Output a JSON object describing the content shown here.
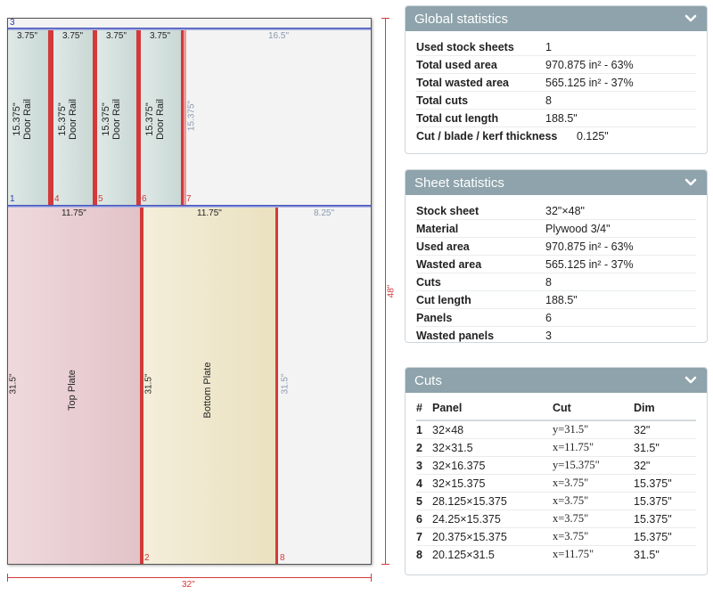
{
  "board": {
    "sheet_width": "32\"",
    "sheet_height": "48\"",
    "strip_number": "3",
    "top_waste_width": "16.5\"",
    "top_waste_height": "15.375\"",
    "bottom_waste_width": "8.25\"",
    "bottom_waste_height": "31.5\"",
    "door_rails": [
      {
        "width": "3.75\"",
        "height": "15.375\"",
        "name": "Door Rail",
        "cut": "1"
      },
      {
        "width": "3.75\"",
        "height": "15.375\"",
        "name": "Door Rail",
        "cut": "4"
      },
      {
        "width": "3.75\"",
        "height": "15.375\"",
        "name": "Door Rail",
        "cut": "5"
      },
      {
        "width": "3.75\"",
        "height": "15.375\"",
        "name": "Door Rail",
        "cut": "6"
      }
    ],
    "cut7": "7",
    "top_plate": {
      "width": "11.75\"",
      "height": "31.5\"",
      "name": "Top Plate"
    },
    "bottom_plate": {
      "width": "11.75\"",
      "height": "31.5\"",
      "name": "Bottom Plate",
      "cut": "2"
    },
    "cut8": "8"
  },
  "global_stats": {
    "title": "Global statistics",
    "rows": [
      {
        "label": "Used stock sheets",
        "value": "1"
      },
      {
        "label": "Total used area",
        "value": "970.875 in² - 63%"
      },
      {
        "label": "Total wasted area",
        "value": "565.125 in² - 37%"
      },
      {
        "label": "Total cuts",
        "value": "8"
      },
      {
        "label": "Total cut length",
        "value": "188.5\""
      },
      {
        "label": "Cut / blade / kerf thickness",
        "value": "0.125\""
      }
    ]
  },
  "sheet_stats": {
    "title": "Sheet statistics",
    "rows": [
      {
        "label": "Stock sheet",
        "value": "32\"×48\""
      },
      {
        "label": "Material",
        "value": "Plywood 3/4\""
      },
      {
        "label": "Used area",
        "value": "970.875 in² - 63%"
      },
      {
        "label": "Wasted area",
        "value": "565.125 in² - 37%"
      },
      {
        "label": "Cuts",
        "value": "8"
      },
      {
        "label": "Cut length",
        "value": "188.5\""
      },
      {
        "label": "Panels",
        "value": "6"
      },
      {
        "label": "Wasted panels",
        "value": "3"
      }
    ]
  },
  "cuts": {
    "title": "Cuts",
    "headers": {
      "num": "#",
      "panel": "Panel",
      "cut": "Cut",
      "dim": "Dim"
    },
    "rows": [
      {
        "num": "1",
        "panel": "32×48",
        "cut": "y=31.5\"",
        "dim": "32\""
      },
      {
        "num": "2",
        "panel": "32×31.5",
        "cut": "x=11.75\"",
        "dim": "31.5\""
      },
      {
        "num": "3",
        "panel": "32×16.375",
        "cut": "y=15.375\"",
        "dim": "32\""
      },
      {
        "num": "4",
        "panel": "32×15.375",
        "cut": "x=3.75\"",
        "dim": "15.375\""
      },
      {
        "num": "5",
        "panel": "28.125×15.375",
        "cut": "x=3.75\"",
        "dim": "15.375\""
      },
      {
        "num": "6",
        "panel": "24.25×15.375",
        "cut": "x=3.75\"",
        "dim": "15.375\""
      },
      {
        "num": "7",
        "panel": "20.375×15.375",
        "cut": "x=3.75\"",
        "dim": "15.375\""
      },
      {
        "num": "8",
        "panel": "20.125×31.5",
        "cut": "x=11.75\"",
        "dim": "31.5\""
      }
    ]
  },
  "colors": {
    "header_bg": "#8ea3ab",
    "rail_fill": "#d3e0dd",
    "top_plate_fill": "#ead2d6",
    "bottom_plate_fill": "#f1ead0",
    "cut_red": "#d23a3a",
    "cut_blue": "#2d3fb0"
  },
  "icons": {
    "panel_toggle": "chevron-down-icon"
  }
}
